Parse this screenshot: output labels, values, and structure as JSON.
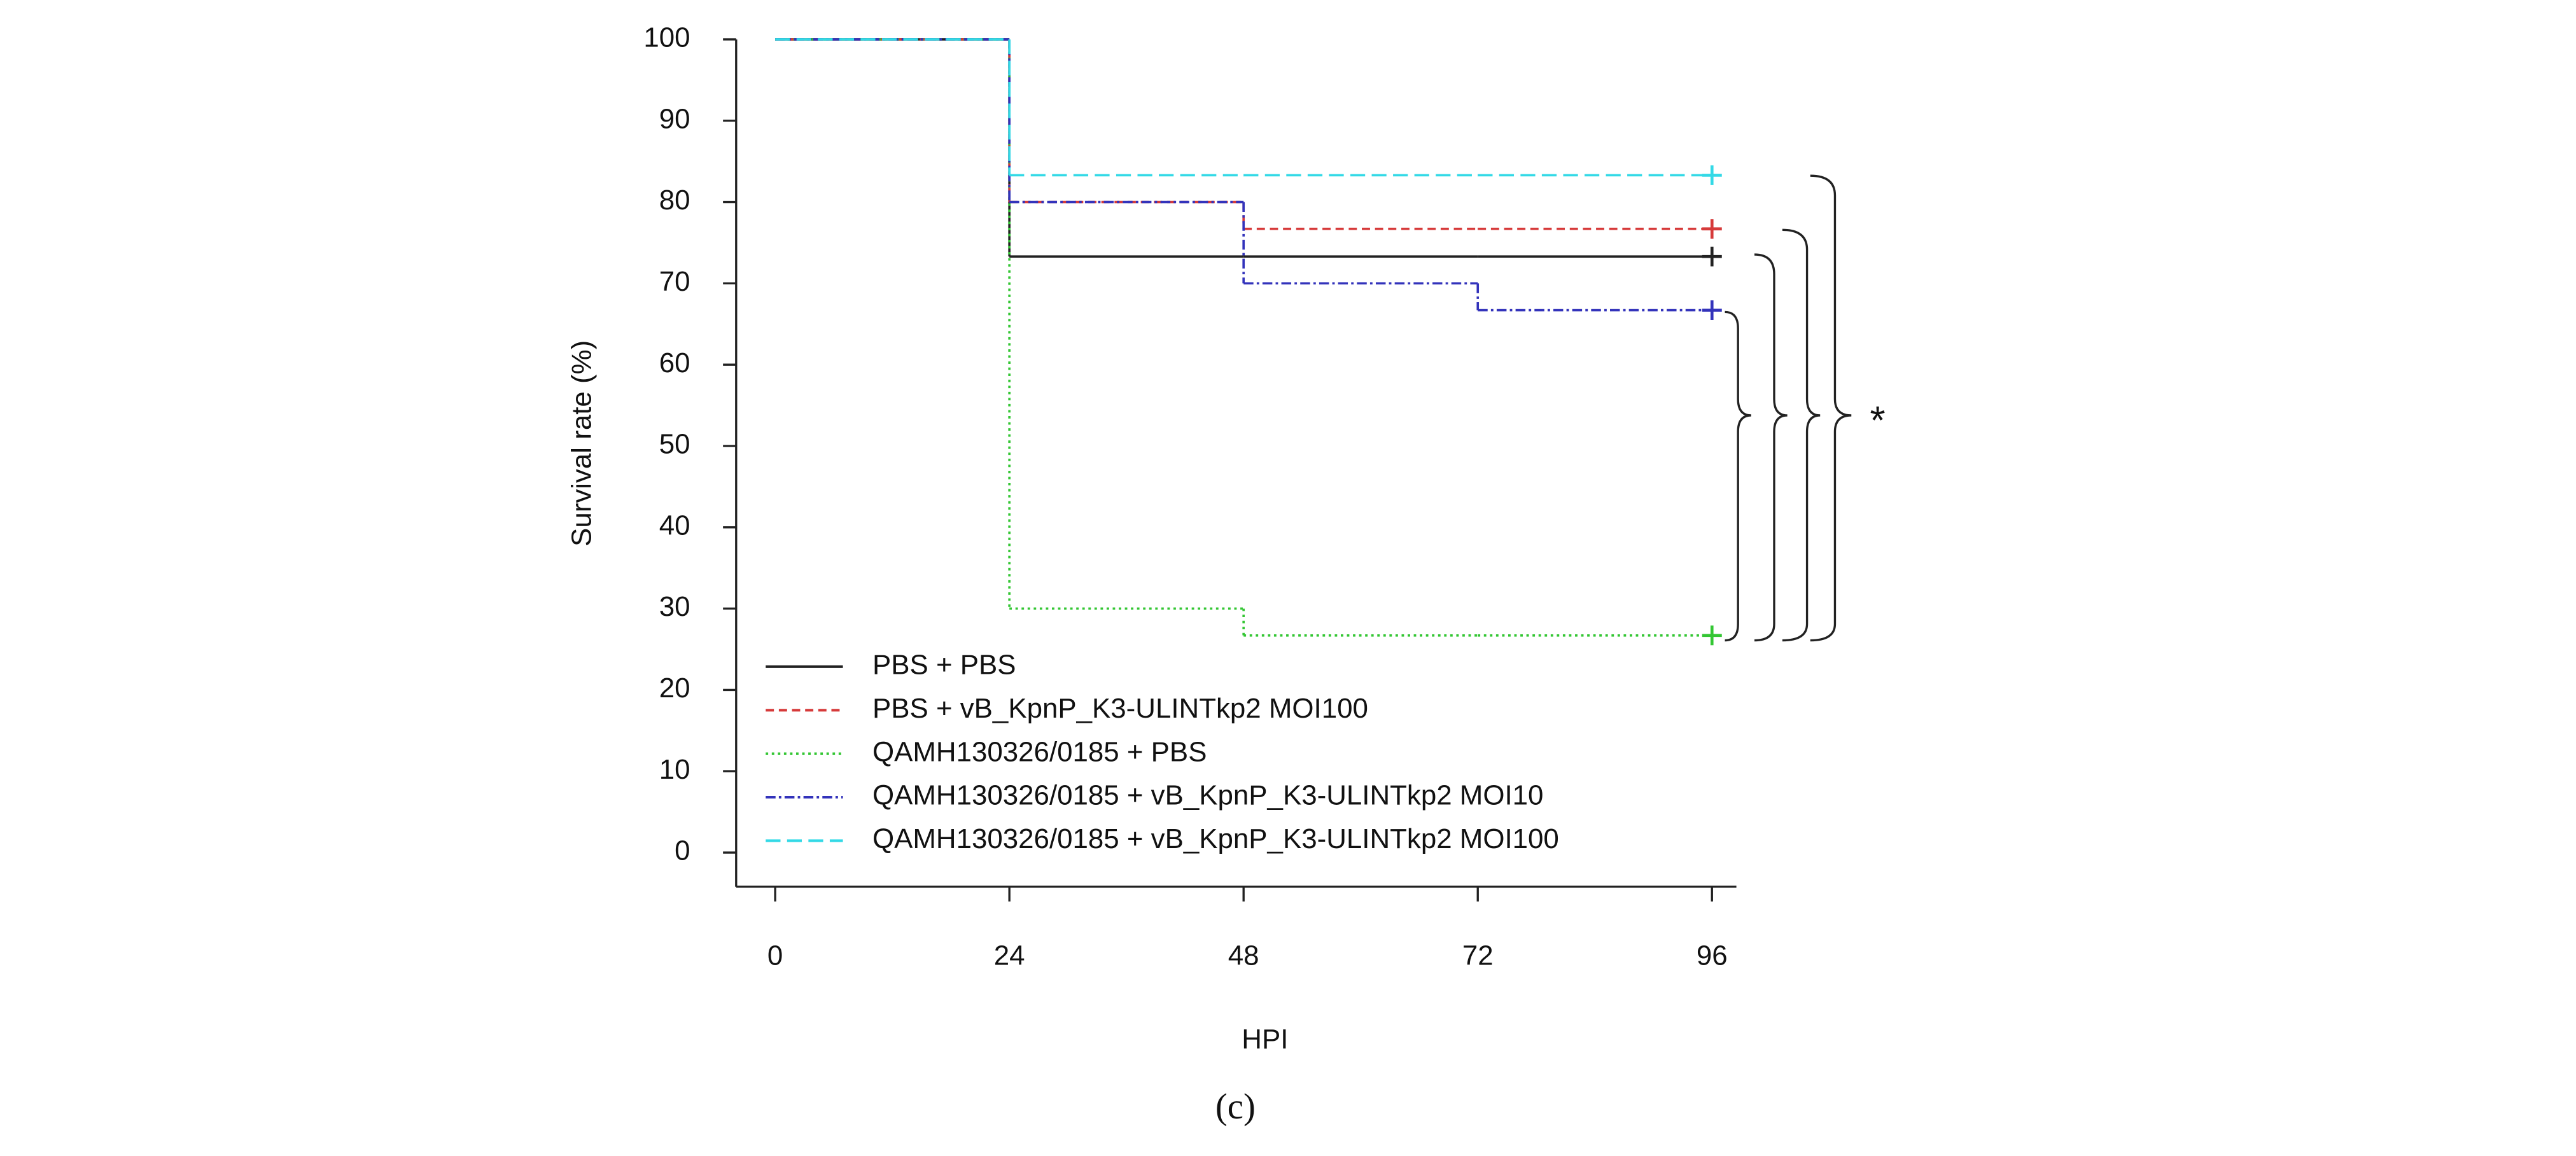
{
  "chart_data": {
    "type": "step",
    "x_label": "HPI",
    "y_label": "Survival rate (%)",
    "caption": "(c)",
    "annotation": "*",
    "x": [
      0,
      24,
      48,
      72,
      96
    ],
    "xlim": [
      -4,
      98.5
    ],
    "xticks": [
      0,
      24,
      48,
      72,
      96
    ],
    "ylim": [
      -4.2,
      100
    ],
    "yticks": [
      0,
      10,
      20,
      30,
      40,
      50,
      60,
      70,
      80,
      90,
      100
    ],
    "legend": "bottom-left",
    "series": [
      {
        "name": "PBS + PBS",
        "color": "#222222",
        "linestyle": "solid",
        "values": [
          100,
          73.3,
          73.3,
          73.3,
          73.3
        ]
      },
      {
        "name": "PBS + vB_KpnP_K3-ULINTkp2 MOI100",
        "color": "#d63a3a",
        "linestyle": "dashed",
        "values": [
          100,
          80,
          76.7,
          76.7,
          76.7
        ]
      },
      {
        "name": "QAMH130326/0185 + PBS",
        "color": "#33c633",
        "linestyle": "dotted",
        "values": [
          100,
          30,
          26.7,
          26.7,
          26.7
        ]
      },
      {
        "name": "QAMH130326/0185 + vB_KpnP_K3-ULINTkp2 MOI10",
        "color": "#3333bb",
        "linestyle": "dashdot",
        "values": [
          100,
          80,
          70,
          66.7,
          66.7
        ]
      },
      {
        "name": "QAMH130326/0185 + vB_KpnP_K3-ULINTkp2 MOI100",
        "color": "#33d9e6",
        "linestyle": "longdash",
        "values": [
          100,
          83.3,
          83.3,
          83.3,
          83.3
        ]
      }
    ]
  }
}
